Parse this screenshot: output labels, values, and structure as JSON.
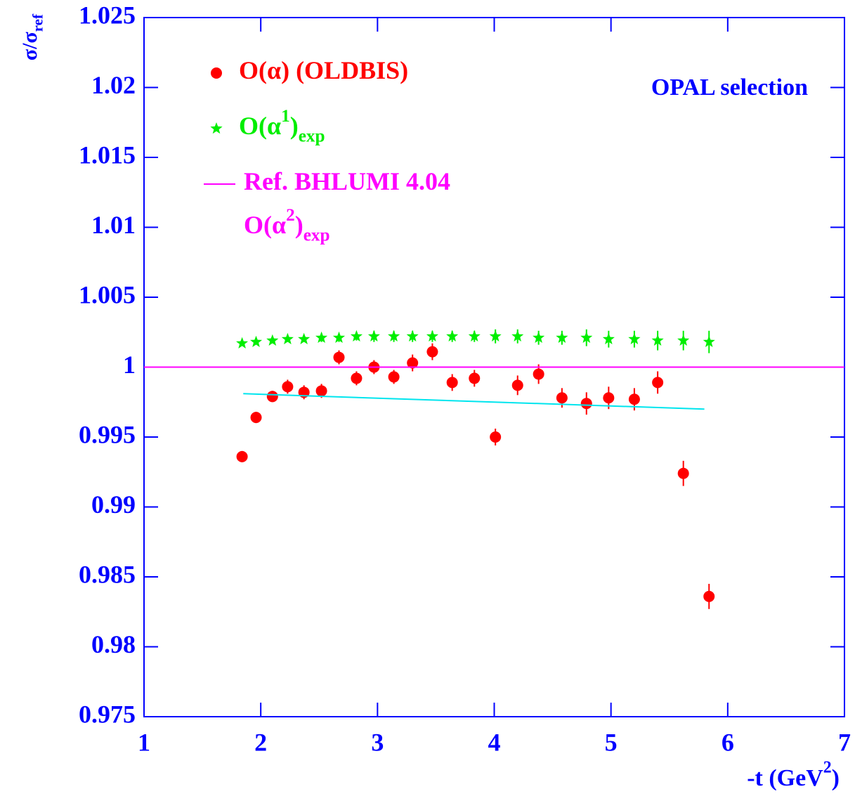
{
  "chart_data": {
    "type": "scatter",
    "title": "OPAL selection",
    "xlabel": [
      {
        "text": "-t (GeV"
      },
      {
        "text": "2",
        "pos": "sup"
      },
      {
        "text": ")"
      }
    ],
    "ylabel": [
      {
        "text": "σ/σ"
      },
      {
        "text": "ref",
        "pos": "sub"
      }
    ],
    "xlim": [
      1,
      7
    ],
    "xticks": [
      1,
      2,
      3,
      4,
      5,
      6,
      7
    ],
    "ylim": [
      0.975,
      1.025
    ],
    "yticks": [
      0.975,
      0.98,
      0.985,
      0.99,
      0.995,
      1,
      1.005,
      1.01,
      1.015,
      1.02,
      1.025
    ],
    "legend": "upper left",
    "axis_color": "#0000ff",
    "series": [
      {
        "name": [
          [
            {
              "text": "O(α) (OLDBIS)"
            }
          ]
        ],
        "color": "#ff0000",
        "style": "circle",
        "x": [
          1.84,
          1.96,
          2.1,
          2.23,
          2.37,
          2.52,
          2.67,
          2.82,
          2.97,
          3.14,
          3.3,
          3.47,
          3.64,
          3.83,
          4.01,
          4.2,
          4.38,
          4.58,
          4.79,
          4.98,
          5.2,
          5.4,
          5.62,
          5.84
        ],
        "values": [
          0.9936,
          0.9964,
          0.9979,
          0.9986,
          0.9982,
          0.9983,
          1.0007,
          0.9992,
          1.0,
          0.9993,
          1.0003,
          1.0011,
          0.9989,
          0.9992,
          0.995,
          0.9987,
          0.9995,
          0.9978,
          0.9974,
          0.9978,
          0.9977,
          0.9989,
          0.9924,
          0.9836
        ],
        "errors": [
          0.0004,
          0.0004,
          0.0004,
          0.0005,
          0.0005,
          0.0005,
          0.0005,
          0.0005,
          0.0005,
          0.0005,
          0.0006,
          0.0006,
          0.0006,
          0.0006,
          0.0006,
          0.0007,
          0.0007,
          0.0007,
          0.0008,
          0.0008,
          0.0008,
          0.0008,
          0.0009,
          0.0009
        ]
      },
      {
        "name": [
          [
            {
              "text": "O(α"
            },
            {
              "text": "1",
              "pos": "sup"
            },
            {
              "text": ")"
            },
            {
              "text": "exp",
              "pos": "sub"
            }
          ]
        ],
        "color": "#00ee00",
        "style": "star",
        "x": [
          1.84,
          1.96,
          2.1,
          2.23,
          2.37,
          2.52,
          2.67,
          2.82,
          2.97,
          3.14,
          3.3,
          3.47,
          3.64,
          3.83,
          4.01,
          4.2,
          4.38,
          4.58,
          4.79,
          4.98,
          5.2,
          5.4,
          5.62,
          5.84
        ],
        "values": [
          1.0017,
          1.0018,
          1.0019,
          1.002,
          1.002,
          1.0021,
          1.0021,
          1.0022,
          1.0022,
          1.0022,
          1.0022,
          1.0022,
          1.0022,
          1.0022,
          1.0022,
          1.0022,
          1.0021,
          1.0021,
          1.0021,
          1.002,
          1.002,
          1.0019,
          1.0019,
          1.0018
        ],
        "errors": [
          0.0001,
          0.0001,
          0.0002,
          0.0002,
          0.0002,
          0.0003,
          0.0003,
          0.0003,
          0.0004,
          0.0004,
          0.0004,
          0.0004,
          0.0004,
          0.0004,
          0.0005,
          0.0005,
          0.0005,
          0.0005,
          0.0006,
          0.0006,
          0.0006,
          0.0007,
          0.0007,
          0.0008
        ]
      },
      {
        "name": [
          [
            {
              "text": "Ref. BHLUMI 4.04"
            }
          ],
          [
            {
              "text": "O(α"
            },
            {
              "text": "2",
              "pos": "sup"
            },
            {
              "text": ")"
            },
            {
              "text": "exp",
              "pos": "sub"
            }
          ]
        ],
        "color": "#ff00ff",
        "style": "line",
        "x": [
          1,
          7
        ],
        "values": [
          1,
          1
        ]
      },
      {
        "color": "#00e5ee",
        "style": "line",
        "x": [
          1.85,
          5.8
        ],
        "values": [
          0.9981,
          0.997
        ]
      }
    ]
  }
}
